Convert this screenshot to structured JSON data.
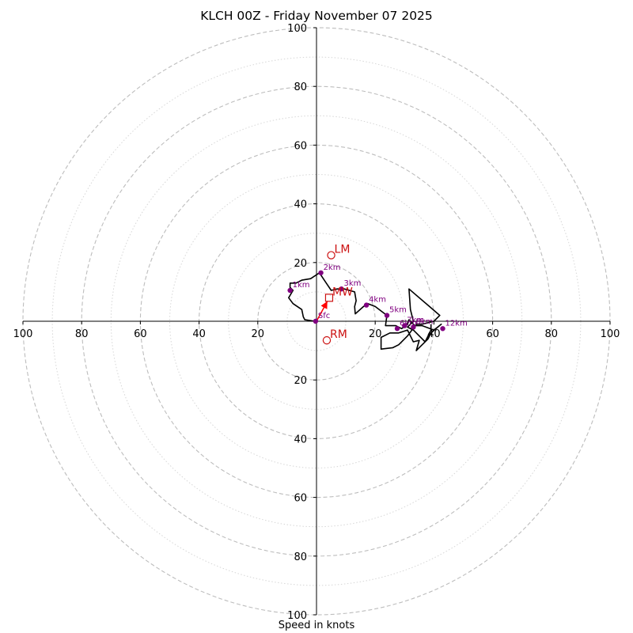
{
  "chart_data": {
    "type": "hodograph",
    "title": "KLCH 00Z - Friday November 07 2025",
    "xlabel": "Speed in knots",
    "units": "knots",
    "range": [
      -100,
      100
    ],
    "ring_major": [
      20,
      40,
      60,
      80,
      100
    ],
    "ring_minor": [
      10,
      30,
      50,
      70,
      90
    ],
    "x_ticks": [
      {
        "value": -100,
        "label": "100"
      },
      {
        "value": -80,
        "label": "80"
      },
      {
        "value": -60,
        "label": "60"
      },
      {
        "value": -40,
        "label": "40"
      },
      {
        "value": -20,
        "label": "20"
      },
      {
        "value": 20,
        "label": "20"
      },
      {
        "value": 40,
        "label": "40"
      },
      {
        "value": 60,
        "label": "60"
      },
      {
        "value": 80,
        "label": "80"
      },
      {
        "value": 100,
        "label": "100"
      }
    ],
    "y_ticks": [
      {
        "value": 100,
        "label": "100"
      },
      {
        "value": 80,
        "label": "80"
      },
      {
        "value": 60,
        "label": "60"
      },
      {
        "value": 40,
        "label": "40"
      },
      {
        "value": 20,
        "label": "20"
      },
      {
        "value": -20,
        "label": "20"
      },
      {
        "value": -40,
        "label": "40"
      },
      {
        "value": -60,
        "label": "60"
      },
      {
        "value": -80,
        "label": "80"
      },
      {
        "value": -100,
        "label": "100"
      }
    ],
    "trace": [
      [
        -0.5,
        0
      ],
      [
        -4,
        0.5
      ],
      [
        -4.5,
        1.5
      ],
      [
        -5,
        4
      ],
      [
        -8,
        6
      ],
      [
        -9.5,
        8
      ],
      [
        -8,
        10.5
      ],
      [
        -9,
        11.5
      ],
      [
        -9,
        13
      ],
      [
        -7,
        13
      ],
      [
        -5,
        14
      ],
      [
        -2,
        14.5
      ],
      [
        1,
        16.5
      ],
      [
        3,
        13.5
      ],
      [
        5,
        10.5
      ],
      [
        7,
        11
      ],
      [
        8,
        11
      ],
      [
        9.5,
        11
      ],
      [
        13,
        10
      ],
      [
        13.5,
        7
      ],
      [
        13,
        5
      ],
      [
        13.2,
        2.5
      ],
      [
        16,
        5
      ],
      [
        17.5,
        6
      ],
      [
        20,
        5
      ],
      [
        24,
        2
      ],
      [
        23.5,
        -1.5
      ],
      [
        27,
        -1.5
      ],
      [
        29,
        -2.5
      ],
      [
        31,
        -1
      ],
      [
        31.5,
        0.5
      ],
      [
        33.5,
        -1.5
      ],
      [
        36,
        -1.5
      ],
      [
        40,
        -3
      ],
      [
        42.5,
        -1
      ],
      [
        39,
        -4
      ],
      [
        38,
        -6
      ],
      [
        34,
        -10
      ],
      [
        35,
        -6.5
      ],
      [
        33,
        -7
      ],
      [
        31,
        -3
      ],
      [
        28,
        -4
      ],
      [
        25,
        -4
      ],
      [
        22,
        -5.5
      ],
      [
        22,
        -7.5
      ],
      [
        22,
        -9.5
      ],
      [
        26,
        -9
      ],
      [
        28,
        -8
      ],
      [
        31,
        -5
      ],
      [
        34,
        -1
      ],
      [
        36,
        -1
      ],
      [
        38,
        -0.5
      ],
      [
        40,
        0
      ],
      [
        42,
        2
      ],
      [
        38.5,
        5
      ],
      [
        31.5,
        11
      ],
      [
        32,
        4
      ],
      [
        33,
        0
      ],
      [
        31,
        -2
      ],
      [
        33,
        -3
      ],
      [
        37,
        -7
      ],
      [
        39,
        -3
      ],
      [
        39,
        -1
      ]
    ],
    "height_points": [
      {
        "label": "Sfc",
        "u": -0.3,
        "v": 0
      },
      {
        "label": "1km",
        "u": -9,
        "v": 10.5
      },
      {
        "label": "2km",
        "u": 1.5,
        "v": 16.5
      },
      {
        "label": "3km",
        "u": 8.5,
        "v": 11
      },
      {
        "label": "4km",
        "u": 17,
        "v": 5.5
      },
      {
        "label": "5km",
        "u": 24,
        "v": 2
      },
      {
        "label": "6km",
        "u": 27.5,
        "v": -2.5
      },
      {
        "label": "7km",
        "u": 30,
        "v": -1.5
      },
      {
        "label": "8km",
        "u": 33,
        "v": -2
      },
      {
        "label": "12km",
        "u": 43,
        "v": -2.5
      }
    ],
    "storm_motion": [
      {
        "label": "LM",
        "u": 5,
        "v": 22.5
      },
      {
        "label": "MW",
        "u": 4.3,
        "v": 8
      },
      {
        "label": "RM",
        "u": 3.5,
        "v": -6.5
      }
    ],
    "shear_arrow": {
      "from": [
        0,
        0
      ],
      "to": [
        4.3,
        8
      ]
    },
    "colors": {
      "trace": "#000000",
      "points": "#800080",
      "motion": "#cc1111",
      "grid": "#bdbdbd"
    }
  }
}
